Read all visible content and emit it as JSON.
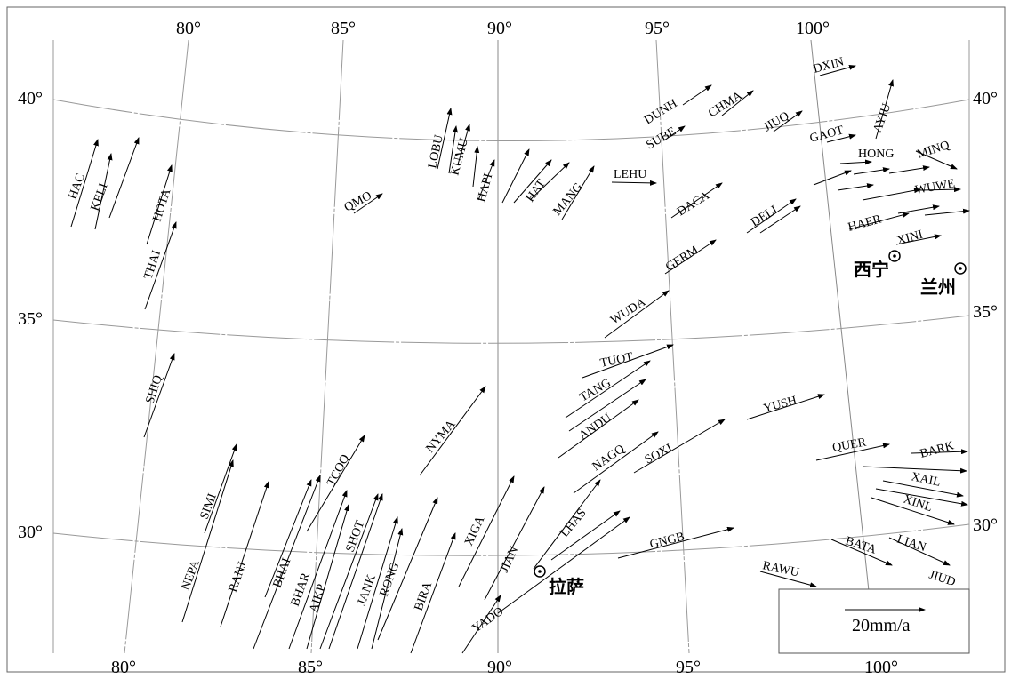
{
  "map": {
    "top_lon_labels": [
      "80°",
      "85°",
      "90°",
      "95°",
      "100°"
    ],
    "bottom_lon_labels": [
      "80°",
      "85°",
      "90°",
      "95°",
      "100°"
    ],
    "left_lat_labels": [
      "40°",
      "35°",
      "30°"
    ],
    "right_lat_labels": [
      "40°",
      "35°",
      "30°"
    ],
    "cities": [
      "西宁",
      "兰州",
      "拉萨"
    ],
    "legend_label": "20mm/a",
    "stations": [
      "DXIN",
      "DUNH",
      "CHMA",
      "AYIU",
      "SUBE",
      "JIUQ",
      "GAOT",
      "HONG",
      "MINQ",
      "WUWE",
      "HAER",
      "XINI",
      "LEHU",
      "DACA",
      "DELI",
      "GERM",
      "WUDA",
      "LOBU",
      "KUMU",
      "HAPI",
      "HAT",
      "MANG",
      "QMO",
      "HAC",
      "KELI",
      "HOTA",
      "THAI",
      "SHIQ",
      "TUOT",
      "TANG",
      "ANDU",
      "YUSH",
      "NYMA",
      "NAGQ",
      "SOXI",
      "QUER",
      "BARK",
      "XAIL",
      "XINL",
      "TCOQ",
      "SIMI",
      "NEPA",
      "RANJ",
      "BHAI",
      "BHAR",
      "AIKP",
      "SHOT",
      "JANK",
      "RONG",
      "BIRA",
      "XIGA",
      "JIAN",
      "LHAS",
      "YADO",
      "GNGB",
      "BATA",
      "LIAN",
      "JIUD",
      "RAWU"
    ]
  },
  "style": {
    "line": "#000000",
    "grid": "#888888",
    "frame": "#666666"
  }
}
